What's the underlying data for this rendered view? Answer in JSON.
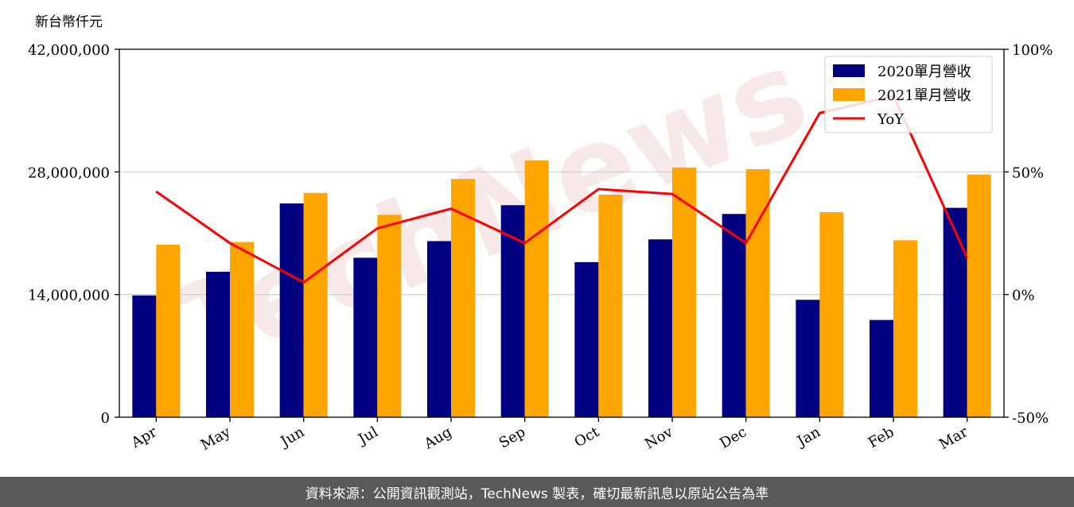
{
  "chart_data": {
    "type": "bar",
    "y_unit_label": "新台幣仟元",
    "categories": [
      "Apr",
      "May",
      "Jun",
      "Jul",
      "Aug",
      "Sep",
      "Oct",
      "Nov",
      "Dec",
      "Jan",
      "Feb",
      "Mar"
    ],
    "series": [
      {
        "name": "2020單月營收",
        "type": "bar",
        "axis": "left",
        "color": "#000080",
        "values": [
          13900000,
          16600000,
          24400000,
          18200000,
          20100000,
          24200000,
          17700000,
          20300000,
          23200000,
          13400000,
          11100000,
          23900000
        ]
      },
      {
        "name": "2021單月營收",
        "type": "bar",
        "axis": "left",
        "color": "#FFA500",
        "values": [
          19700000,
          20000000,
          25600000,
          23100000,
          27200000,
          29300000,
          25400000,
          28500000,
          28300000,
          23400000,
          20200000,
          27700000
        ]
      },
      {
        "name": "YoY",
        "type": "line",
        "axis": "right",
        "color": "#FF0000",
        "values": [
          42,
          21,
          5,
          27,
          35,
          21,
          43,
          41,
          21,
          74,
          81,
          15
        ]
      }
    ],
    "y_left": {
      "min": 0,
      "max": 42000000,
      "ticks": [
        0,
        14000000,
        28000000,
        42000000
      ],
      "tick_labels": [
        "0",
        "14,000,000",
        "28,000,000",
        "42,000,000"
      ]
    },
    "y_right": {
      "min": -50,
      "max": 100,
      "ticks": [
        -50,
        0,
        50,
        100
      ],
      "tick_labels": [
        "-50%",
        "0%",
        "50%",
        "100%"
      ]
    },
    "grid": "horizontal",
    "legend_position": "top-right"
  },
  "watermark": "TechNews",
  "footer": {
    "source": "資料來源：公開資訊觀測站，TechNews 製表，確切最新訊息以原站公告為準"
  }
}
